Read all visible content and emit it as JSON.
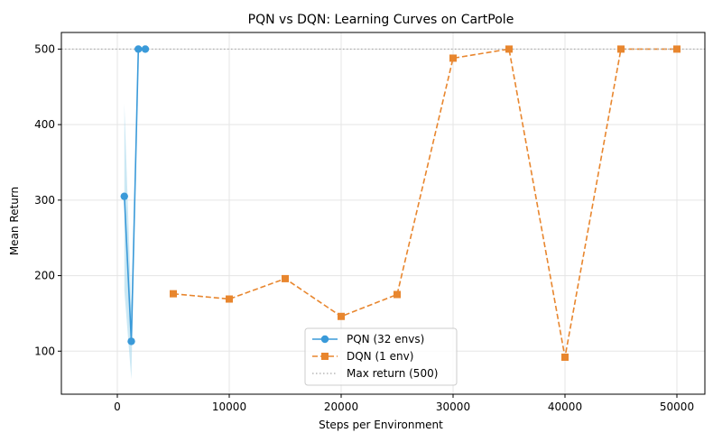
{
  "chart_data": {
    "type": "line",
    "title": "PQN vs DQN: Learning Curves on CartPole",
    "xlabel": "Steps per Environment",
    "ylabel": "Mean Return",
    "xlim": [
      -5000,
      52500
    ],
    "ylim": [
      43,
      522
    ],
    "xticks": [
      0,
      10000,
      20000,
      30000,
      40000,
      50000
    ],
    "yticks": [
      100,
      200,
      300,
      400,
      500
    ],
    "grid": true,
    "legend_position": "lower-center",
    "series": [
      {
        "name": "PQN (32 envs)",
        "color": "#3a9ad9",
        "linestyle": "solid",
        "marker": "circle",
        "x": [
          625,
          1250,
          1875,
          2500
        ],
        "y": [
          305,
          113,
          500,
          500
        ],
        "band_lower": [
          180,
          63,
          500,
          500
        ],
        "band_upper": [
          428,
          160,
          500,
          500
        ],
        "band_color": "#a8d8ec"
      },
      {
        "name": "DQN (1 env)",
        "color": "#e8862e",
        "linestyle": "dashed",
        "marker": "square",
        "x": [
          5000,
          10000,
          15000,
          20000,
          25000,
          30000,
          35000,
          40000,
          45000,
          50000
        ],
        "y": [
          176,
          169,
          196,
          146,
          175,
          488,
          500,
          92,
          500,
          500
        ]
      },
      {
        "name": "Max return (500)",
        "color": "#aaaaaa",
        "linestyle": "dotted",
        "type": "hline",
        "y": 500
      }
    ]
  }
}
